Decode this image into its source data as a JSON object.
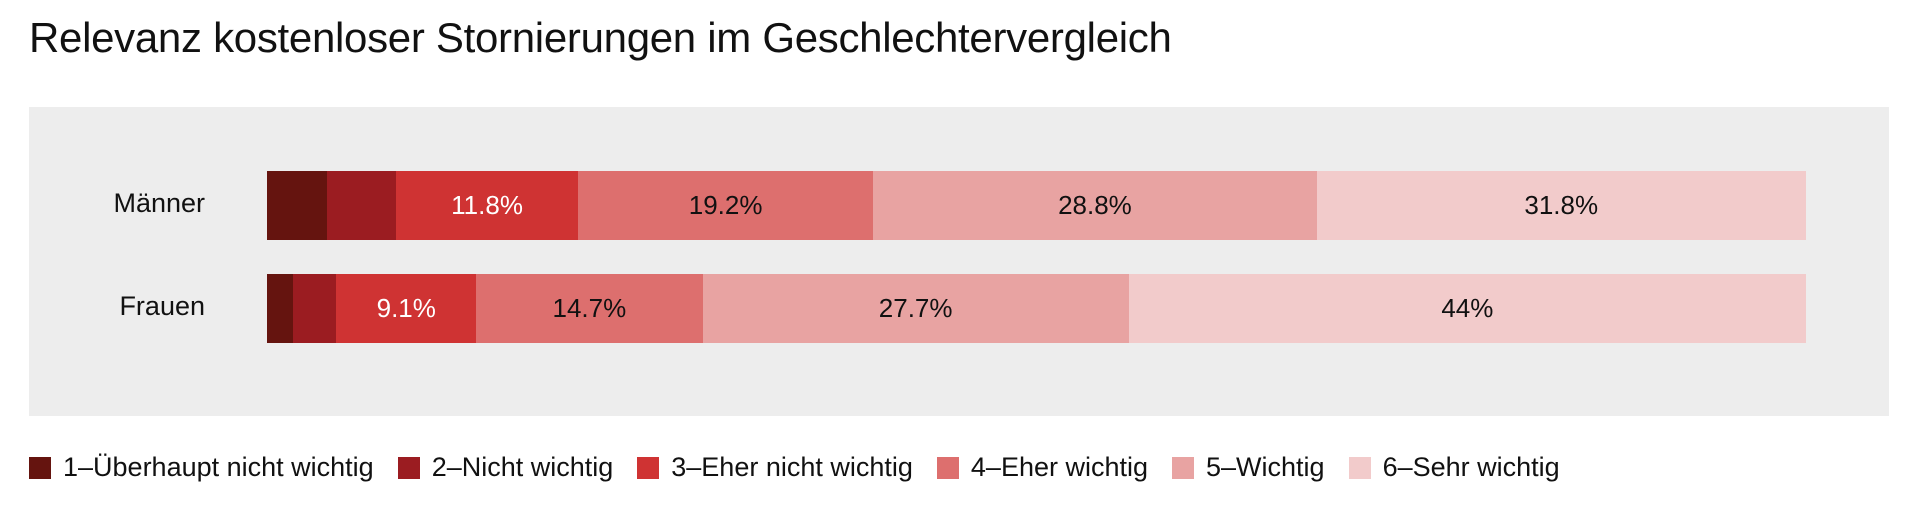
{
  "chart_data": {
    "type": "bar",
    "orientation": "horizontal-stacked-100",
    "title": "Relevanz kostenloser Stornierungen im Geschlechtervergleich",
    "categories": [
      "Männer",
      "Frauen"
    ],
    "series": [
      {
        "name": "1–Überhaupt nicht wichtig",
        "color": "#65140f",
        "values": [
          3.9,
          1.7
        ],
        "labels": [
          "",
          ""
        ]
      },
      {
        "name": "2–Nicht wichtig",
        "color": "#9b1c21",
        "values": [
          4.5,
          2.8
        ],
        "labels": [
          "",
          ""
        ]
      },
      {
        "name": "3–Eher nicht wichtig",
        "color": "#cf3333",
        "values": [
          11.8,
          9.1
        ],
        "labels": [
          "11.8%",
          "9.1%"
        ]
      },
      {
        "name": "4–Eher wichtig",
        "color": "#dd6f6e",
        "values": [
          19.2,
          14.7
        ],
        "labels": [
          "19.2%",
          "14.7%"
        ]
      },
      {
        "name": "5–Wichtig",
        "color": "#e8a3a2",
        "values": [
          28.8,
          27.7
        ],
        "labels": [
          "28.8%",
          "27.7%"
        ]
      },
      {
        "name": "6–Sehr wichtig",
        "color": "#f2cbcb",
        "values": [
          31.8,
          44
        ],
        "labels": [
          "31.8%",
          "44%"
        ]
      }
    ],
    "xlim": [
      0,
      100
    ],
    "legend": "bottom",
    "grid": false
  }
}
